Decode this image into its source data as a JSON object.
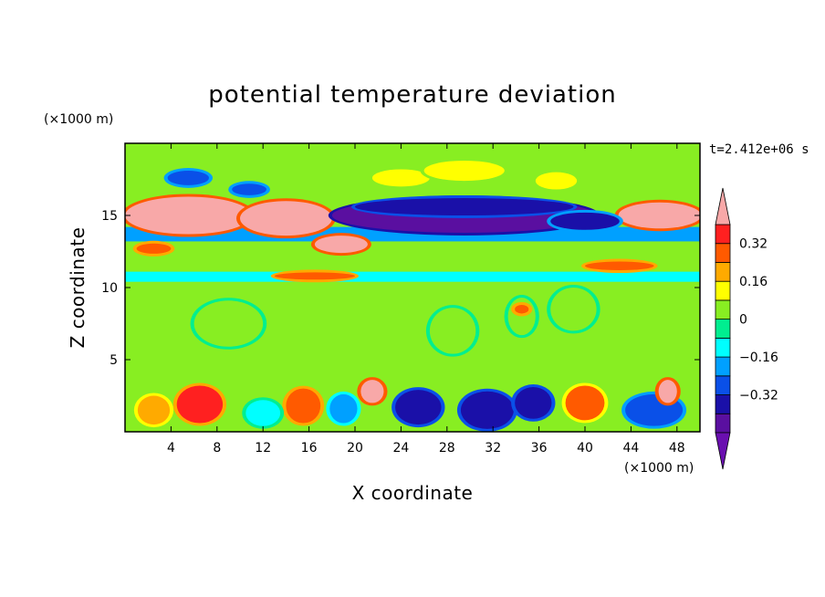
{
  "chart_data": {
    "type": "heatmap",
    "title": "potential temperature deviation",
    "xlabel": "X coordinate",
    "ylabel": "Z coordinate",
    "x_unit": "(×1000 m)",
    "y_unit": "(×1000 m)",
    "time_label": "t=2.412e+06 s",
    "xlim": [
      0,
      50
    ],
    "ylim": [
      0,
      20
    ],
    "x_ticks": [
      "4",
      "8",
      "12",
      "16",
      "20",
      "24",
      "28",
      "32",
      "36",
      "40",
      "44",
      "48"
    ],
    "y_ticks": [
      "5",
      "10",
      "15"
    ],
    "colorbar": {
      "levels": [
        -0.48,
        -0.4,
        -0.32,
        -0.24,
        -0.16,
        -0.08,
        0,
        0.08,
        0.16,
        0.24,
        0.32,
        0.4
      ],
      "labels": [
        "0.32",
        "0.16",
        "0",
        "−0.16",
        "−0.32"
      ],
      "label_values": [
        0.32,
        0.16,
        0,
        -0.16,
        -0.32
      ],
      "colors": [
        "#6a0fb0",
        "#5a0fa0",
        "#1a10a8",
        "#0a50e8",
        "#00a0ff",
        "#00ffff",
        "#00ee90",
        "#88ee22",
        "#ffff00",
        "#ffaa00",
        "#ff5a00",
        "#ff2020",
        "#f8a8a8"
      ],
      "extend": "both"
    },
    "regions": [
      {
        "kind": "band",
        "z": [
          10.4,
          11.1
        ],
        "value": -0.1
      },
      {
        "kind": "band",
        "z": [
          13.2,
          14.2
        ],
        "value": -0.18
      },
      {
        "kind": "band",
        "z": [
          11.6,
          12.2
        ],
        "value": 0.05
      },
      {
        "kind": "blob",
        "x": 5.5,
        "z": 15.0,
        "rx": 5.5,
        "rz": 1.3,
        "value": 0.42
      },
      {
        "kind": "blob",
        "x": 14.0,
        "z": 14.8,
        "rx": 4.0,
        "rz": 1.2,
        "value": 0.42
      },
      {
        "kind": "blob",
        "x": 18.8,
        "z": 13.0,
        "rx": 2.3,
        "rz": 0.6,
        "value": 0.42
      },
      {
        "kind": "blob",
        "x": 2.5,
        "z": 12.7,
        "rx": 1.5,
        "rz": 0.35,
        "value": 0.3
      },
      {
        "kind": "blob",
        "x": 46.5,
        "z": 15.0,
        "rx": 3.6,
        "rz": 0.9,
        "value": 0.42
      },
      {
        "kind": "blob",
        "x": 43.0,
        "z": 11.5,
        "rx": 3.0,
        "rz": 0.3,
        "value": 0.3
      },
      {
        "kind": "blob",
        "x": 16.5,
        "z": 10.8,
        "rx": 3.5,
        "rz": 0.25,
        "value": 0.3
      },
      {
        "kind": "blob",
        "x": 29.5,
        "z": 15.0,
        "rx": 11.5,
        "rz": 1.2,
        "value": -0.45
      },
      {
        "kind": "blob",
        "x": 29.5,
        "z": 15.6,
        "rx": 9.5,
        "rz": 0.6,
        "value": -0.4
      },
      {
        "kind": "blob",
        "x": 40.0,
        "z": 14.6,
        "rx": 3.0,
        "rz": 0.6,
        "value": -0.35
      },
      {
        "kind": "blob",
        "x": 5.5,
        "z": 17.6,
        "rx": 1.8,
        "rz": 0.5,
        "value": -0.3
      },
      {
        "kind": "blob",
        "x": 10.8,
        "z": 16.8,
        "rx": 1.5,
        "rz": 0.4,
        "value": -0.3
      },
      {
        "kind": "blob",
        "x": 24.0,
        "z": 17.6,
        "rx": 2.5,
        "rz": 0.6,
        "value": 0.12
      },
      {
        "kind": "blob",
        "x": 29.5,
        "z": 18.1,
        "rx": 3.5,
        "rz": 0.7,
        "value": 0.12
      },
      {
        "kind": "blob",
        "x": 37.5,
        "z": 17.4,
        "rx": 1.8,
        "rz": 0.6,
        "value": 0.12
      },
      {
        "kind": "blob",
        "x": 34.5,
        "z": 8.0,
        "rx": 1.2,
        "rz": 1.3,
        "value": 0.05
      },
      {
        "kind": "blob",
        "x": 39.0,
        "z": 8.5,
        "rx": 2.0,
        "rz": 1.5,
        "value": 0.05
      },
      {
        "kind": "blob",
        "x": 9.0,
        "z": 7.5,
        "rx": 3.0,
        "rz": 1.6,
        "value": 0.05
      },
      {
        "kind": "blob",
        "x": 28.5,
        "z": 7.0,
        "rx": 2.0,
        "rz": 1.6,
        "value": 0.05
      },
      {
        "kind": "blob",
        "x": 34.5,
        "z": 8.5,
        "rx": 0.6,
        "rz": 0.3,
        "value": 0.3
      },
      {
        "kind": "blob",
        "x": 6.5,
        "z": 1.9,
        "rx": 2.0,
        "rz": 1.3,
        "value": 0.35
      },
      {
        "kind": "blob",
        "x": 15.5,
        "z": 1.8,
        "rx": 1.5,
        "rz": 1.2,
        "value": 0.3
      },
      {
        "kind": "blob",
        "x": 21.5,
        "z": 2.8,
        "rx": 1.0,
        "rz": 0.8,
        "value": 0.4
      },
      {
        "kind": "blob",
        "x": 25.5,
        "z": 1.7,
        "rx": 2.0,
        "rz": 1.2,
        "value": -0.4
      },
      {
        "kind": "blob",
        "x": 31.5,
        "z": 1.5,
        "rx": 2.3,
        "rz": 1.3,
        "value": -0.38
      },
      {
        "kind": "blob",
        "x": 35.5,
        "z": 2.0,
        "rx": 1.6,
        "rz": 1.1,
        "value": -0.4
      },
      {
        "kind": "blob",
        "x": 40.0,
        "z": 2.0,
        "rx": 1.7,
        "rz": 1.2,
        "value": 0.25
      },
      {
        "kind": "blob",
        "x": 46.0,
        "z": 1.5,
        "rx": 2.5,
        "rz": 1.1,
        "value": -0.3
      },
      {
        "kind": "blob",
        "x": 47.2,
        "z": 2.8,
        "rx": 0.8,
        "rz": 0.8,
        "value": 0.42
      },
      {
        "kind": "blob",
        "x": 2.5,
        "z": 1.5,
        "rx": 1.4,
        "rz": 1.0,
        "value": 0.2
      },
      {
        "kind": "blob",
        "x": 12.0,
        "z": 1.3,
        "rx": 1.5,
        "rz": 0.9,
        "value": -0.15
      },
      {
        "kind": "blob",
        "x": 19.0,
        "z": 1.6,
        "rx": 1.2,
        "rz": 1.0,
        "value": -0.22
      }
    ]
  }
}
